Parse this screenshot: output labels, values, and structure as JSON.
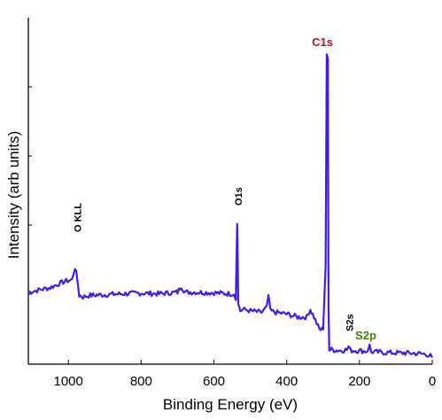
{
  "chart_data": {
    "type": "line",
    "title": "",
    "xlabel": "Binding Energy (eV)",
    "ylabel": "Intensity (arb units)",
    "x_ticks": [
      1000,
      800,
      600,
      400,
      200,
      0
    ],
    "x_tick_labels": [
      "1000",
      "800",
      "600",
      "400",
      "200",
      "0"
    ],
    "xlim": [
      1110,
      0
    ],
    "ylim": [
      0,
      100
    ],
    "x_reversed": true,
    "grid": false,
    "line_color": "#3d1df2",
    "series": [
      {
        "x": [
          1110,
          1090,
          1070,
          1050,
          1030,
          1010,
          990,
          982,
          978,
          970,
          960,
          940,
          900,
          850,
          800,
          750,
          700,
          690,
          680,
          650,
          600,
          560,
          545,
          540,
          536,
          533,
          530,
          528,
          520,
          500,
          470,
          455,
          450,
          445,
          430,
          400,
          370,
          345,
          335,
          325,
          310,
          300,
          293,
          290,
          287,
          285,
          283,
          280,
          270,
          260,
          250,
          235,
          230,
          225,
          200,
          180,
          172,
          168,
          160,
          130,
          100,
          60,
          30,
          15,
          5,
          0
        ],
        "y": [
          22,
          22.5,
          23,
          23.5,
          24.5,
          25.5,
          26,
          30,
          28,
          21,
          20.5,
          21,
          21.2,
          21.5,
          21.7,
          21.5,
          22,
          24,
          22,
          22,
          21.8,
          21.5,
          21.5,
          19.5,
          44,
          19,
          17,
          16,
          16.5,
          16,
          15.5,
          17,
          21,
          16,
          15.5,
          15,
          14,
          14,
          16.5,
          14,
          10,
          10,
          30,
          99,
          97,
          18,
          3.5,
          3.6,
          3.4,
          3.3,
          3.3,
          3.5,
          4.5,
          3.3,
          3.2,
          3,
          4.8,
          2.8,
          2.8,
          2.6,
          2.5,
          2.4,
          2.2,
          2,
          1.5,
          1
        ]
      }
    ],
    "annotations": [
      {
        "text": "O KLL",
        "x": 975,
        "color": "#000000",
        "orientation": "vertical"
      },
      {
        "text": "O1s",
        "x": 533,
        "color": "#000000",
        "orientation": "vertical"
      },
      {
        "text": "C1s",
        "x": 287,
        "color": "#b5102a",
        "orientation": "horizontal"
      },
      {
        "text": "S2s",
        "x": 228,
        "color": "#000000",
        "orientation": "vertical"
      },
      {
        "text": "S2p",
        "x": 168,
        "color": "#3d7f12",
        "orientation": "horizontal"
      }
    ]
  }
}
